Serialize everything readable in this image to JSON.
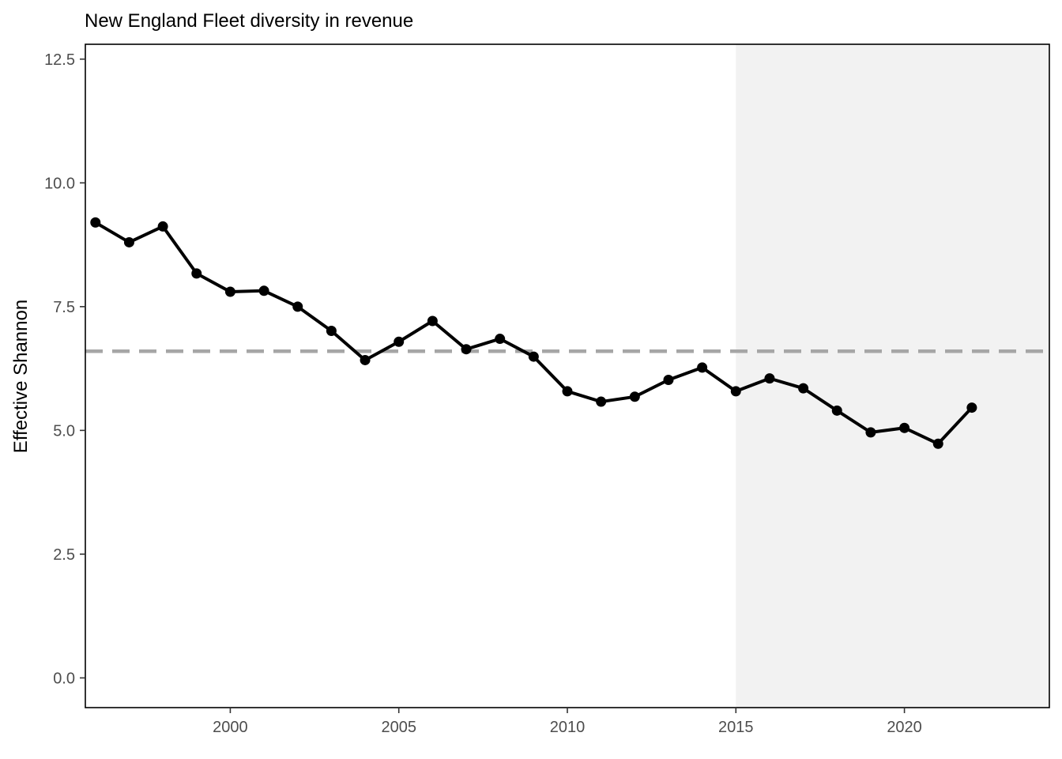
{
  "chart_data": {
    "type": "line",
    "title": "New England Fleet diversity in revenue",
    "xlabel": "",
    "ylabel": "Effective Shannon",
    "xlim": [
      1995.7,
      2024.3
    ],
    "ylim": [
      -0.6,
      12.8
    ],
    "x_ticks": [
      2000,
      2005,
      2010,
      2015,
      2020
    ],
    "y_ticks": [
      0.0,
      2.5,
      5.0,
      7.5,
      10.0,
      12.5
    ],
    "y_tick_labels": [
      "0.0",
      "2.5",
      "5.0",
      "7.5",
      "10.0",
      "12.5"
    ],
    "grid": false,
    "legend": "none",
    "shaded_region": {
      "x_start": 2015,
      "x_end": 2024.3,
      "color": "#f2f2f2"
    },
    "reference_line": {
      "y": 6.6,
      "style": "dashed",
      "color": "#a6a6a6"
    },
    "series": [
      {
        "color": "#000000",
        "x": [
          1996,
          1997,
          1998,
          1999,
          2000,
          2001,
          2002,
          2003,
          2004,
          2005,
          2006,
          2007,
          2008,
          2009,
          2010,
          2011,
          2012,
          2013,
          2014,
          2015,
          2016,
          2017,
          2018,
          2019,
          2020,
          2021,
          2022
        ],
        "values": [
          9.2,
          8.8,
          9.12,
          8.17,
          7.8,
          7.82,
          7.5,
          7.01,
          6.42,
          6.79,
          7.21,
          6.64,
          6.85,
          6.49,
          5.79,
          5.58,
          5.68,
          6.02,
          6.27,
          5.79,
          6.05,
          5.85,
          5.4,
          4.96,
          5.05,
          4.73,
          5.46
        ]
      }
    ]
  }
}
